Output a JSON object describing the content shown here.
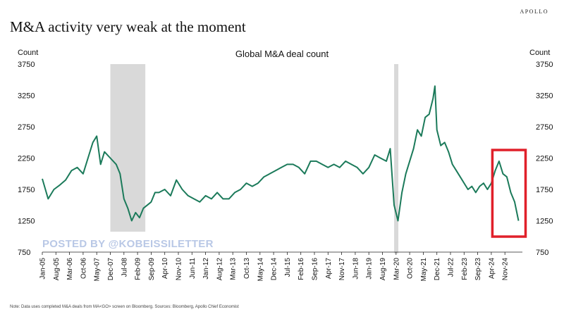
{
  "brand": "APOLLO",
  "headline": "M&A activity very weak at the moment",
  "watermark": "POSTED BY @KOBEISSILETTER",
  "note": "Note: Data uses completed M&A deals from MA<GO> screen on Bloomberg. Sources: Bloomberg, Apollo Chief Economist",
  "colors": {
    "line": "#1b7a5a",
    "shade": "#d9d9d9",
    "highlight": "#e0202a"
  },
  "chart_data": {
    "type": "line",
    "title": "Global M&A deal count",
    "ylabel_left": "Count",
    "ylabel_right": "Count",
    "ylim": [
      750,
      3750
    ],
    "yticks": [
      750,
      1250,
      1750,
      2250,
      2750,
      3250,
      3750
    ],
    "xlim": [
      "2005-01",
      "2025-08"
    ],
    "xticks": [
      "Jan-05",
      "Aug-05",
      "Mar-06",
      "Oct-06",
      "May-07",
      "Dec-07",
      "Jul-08",
      "Feb-09",
      "Sep-09",
      "Apr-10",
      "Nov-10",
      "Jun-11",
      "Jan-12",
      "Aug-12",
      "Mar-13",
      "Oct-13",
      "May-14",
      "Dec-14",
      "Jul-15",
      "Feb-16",
      "Sep-16",
      "Apr-17",
      "Nov-17",
      "Jun-18",
      "Jan-19",
      "Aug-19",
      "Mar-20",
      "Oct-20",
      "May-21",
      "Dec-21",
      "Jul-22",
      "Feb-23",
      "Sep-23",
      "Apr-24",
      "Nov-24"
    ],
    "shaded_periods": [
      [
        "2007-12",
        "2009-06"
      ],
      [
        "2020-02",
        "2020-04"
      ]
    ],
    "highlight_period": [
      "2024-06",
      "2025-06"
    ],
    "series": [
      {
        "x": [
          "2005-01",
          "2005-04",
          "2005-07",
          "2005-10",
          "2006-01",
          "2006-04",
          "2006-07",
          "2006-10",
          "2007-01",
          "2007-03",
          "2007-05",
          "2007-07",
          "2007-09",
          "2007-12",
          "2008-03",
          "2008-05",
          "2008-07",
          "2008-09",
          "2008-11",
          "2009-01",
          "2009-03",
          "2009-05",
          "2009-07",
          "2009-09",
          "2009-11",
          "2010-01",
          "2010-04",
          "2010-07",
          "2010-10",
          "2011-01",
          "2011-04",
          "2011-07",
          "2011-10",
          "2012-01",
          "2012-04",
          "2012-07",
          "2012-10",
          "2013-01",
          "2013-04",
          "2013-07",
          "2013-10",
          "2014-01",
          "2014-04",
          "2014-07",
          "2014-10",
          "2015-01",
          "2015-04",
          "2015-07",
          "2015-10",
          "2016-01",
          "2016-04",
          "2016-07",
          "2016-10",
          "2017-01",
          "2017-04",
          "2017-07",
          "2017-10",
          "2018-01",
          "2018-04",
          "2018-07",
          "2018-10",
          "2019-01",
          "2019-04",
          "2019-07",
          "2019-10",
          "2019-12",
          "2020-02",
          "2020-04",
          "2020-06",
          "2020-08",
          "2020-10",
          "2020-12",
          "2021-02",
          "2021-04",
          "2021-06",
          "2021-08",
          "2021-10",
          "2021-11",
          "2021-12",
          "2022-02",
          "2022-04",
          "2022-06",
          "2022-08",
          "2022-10",
          "2022-12",
          "2023-02",
          "2023-04",
          "2023-06",
          "2023-08",
          "2023-10",
          "2023-12",
          "2024-02",
          "2024-04",
          "2024-06",
          "2024-08",
          "2024-10",
          "2024-12",
          "2025-02",
          "2025-04",
          "2025-06"
        ],
        "values": [
          1920,
          1600,
          1750,
          1820,
          1900,
          2050,
          2100,
          2000,
          2300,
          2500,
          2600,
          2150,
          2350,
          2250,
          2150,
          2000,
          1600,
          1450,
          1250,
          1380,
          1300,
          1450,
          1500,
          1550,
          1700,
          1700,
          1750,
          1650,
          1900,
          1750,
          1650,
          1600,
          1550,
          1650,
          1600,
          1700,
          1600,
          1600,
          1700,
          1750,
          1850,
          1800,
          1850,
          1950,
          2000,
          2050,
          2100,
          2150,
          2150,
          2100,
          2000,
          2200,
          2200,
          2150,
          2100,
          2150,
          2100,
          2200,
          2150,
          2100,
          2000,
          2100,
          2300,
          2250,
          2200,
          2400,
          1500,
          1250,
          1700,
          2000,
          2200,
          2400,
          2700,
          2600,
          2900,
          2950,
          3200,
          3400,
          2700,
          2450,
          2500,
          2350,
          2150,
          2050,
          1950,
          1850,
          1750,
          1800,
          1700,
          1800,
          1850,
          1750,
          1850,
          2050,
          2200,
          2000,
          1950,
          1700,
          1550,
          1250
        ]
      }
    ]
  }
}
